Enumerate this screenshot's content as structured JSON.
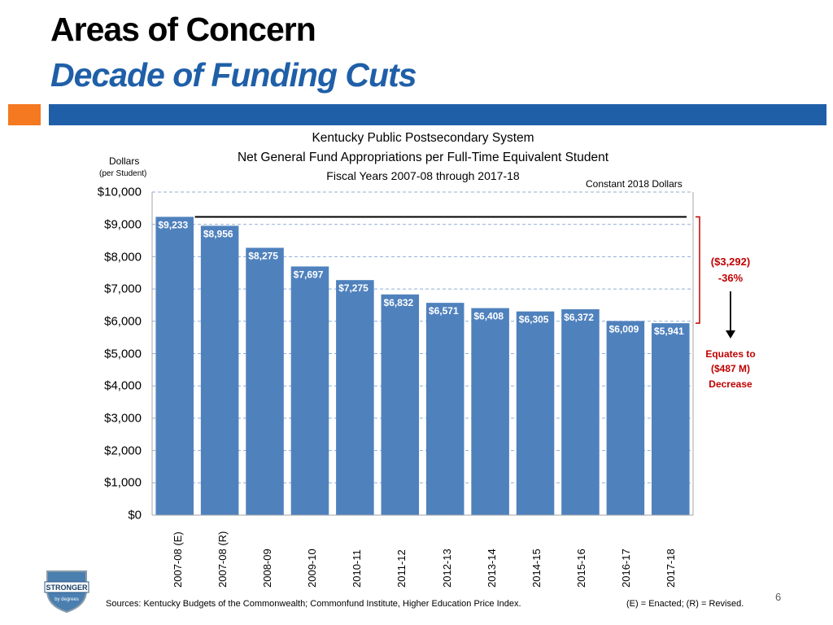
{
  "slide": {
    "title": "Areas of Concern",
    "subtitle": "Decade of Funding Cuts",
    "page_number": "6",
    "logo_text": "STRONGER",
    "logo_subtext": "by degrees"
  },
  "colors": {
    "bar": "#4f81bd",
    "accent_orange": "#f47920",
    "accent_blue": "#1f5fa8",
    "subtitle": "#1f5fa8",
    "annotation": "#c00000"
  },
  "chart_data": {
    "type": "bar",
    "title_lines": [
      "Kentucky Public Postsecondary System",
      "Net General Fund Appropriations per Full-Time Equivalent Student",
      "Fiscal Years 2007-08 through 2017-18"
    ],
    "ylabel": "Dollars",
    "ylabel_sub": "(per Student)",
    "note": "Constant 2018 Dollars",
    "categories": [
      "2007-08 (E)",
      "2007-08 (R)",
      "2008-09",
      "2009-10",
      "2010-11",
      "2011-12",
      "2012-13",
      "2013-14",
      "2014-15",
      "2015-16",
      "2016-17",
      "2017-18"
    ],
    "values": [
      9233,
      8956,
      8275,
      7697,
      7275,
      6832,
      6571,
      6408,
      6305,
      6372,
      6009,
      5941
    ],
    "value_labels": [
      "$9,233",
      "$8,956",
      "$8,275",
      "$7,697",
      "$7,275",
      "$6,832",
      "$6,571",
      "$6,408",
      "$6,305",
      "$6,372",
      "$6,009",
      "$5,941"
    ],
    "yticks": [
      0,
      1000,
      2000,
      3000,
      4000,
      5000,
      6000,
      7000,
      8000,
      9000,
      10000
    ],
    "ytick_labels": [
      "$0",
      "$1,000",
      "$2,000",
      "$3,000",
      "$4,000",
      "$5,000",
      "$6,000",
      "$7,000",
      "$8,000",
      "$9,000",
      "$10,000"
    ],
    "ylim": [
      0,
      10000
    ],
    "reference_line_value": 9233,
    "annotation": {
      "change": "($3,292)",
      "percent": "-36%",
      "line1": "Equates to",
      "line2": "($487 M)",
      "line3": "Decrease"
    }
  },
  "footer": {
    "sources": "Sources: Kentucky Budgets of the Commonwealth; Commonfund Institute, Higher Education Price Index.",
    "legend": "(E) = Enacted;  (R) = Revised."
  }
}
